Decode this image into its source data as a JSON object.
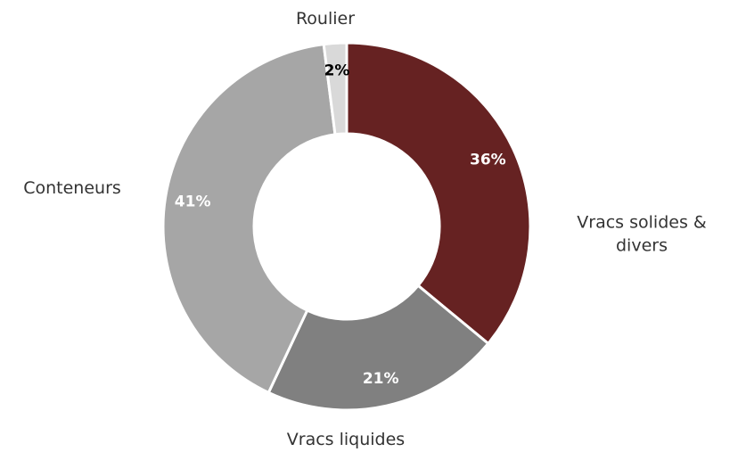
{
  "chart_data": {
    "type": "donut",
    "categories": [
      "Vracs solides & divers",
      "Vracs liquides",
      "Conteneurs",
      "Roulier"
    ],
    "values": [
      36,
      21,
      41,
      2
    ],
    "value_labels": [
      "36%",
      "21%",
      "41%",
      "2%"
    ],
    "colors": [
      "#662222",
      "#808080",
      "#a6a6a6",
      "#d9d9d9"
    ]
  }
}
